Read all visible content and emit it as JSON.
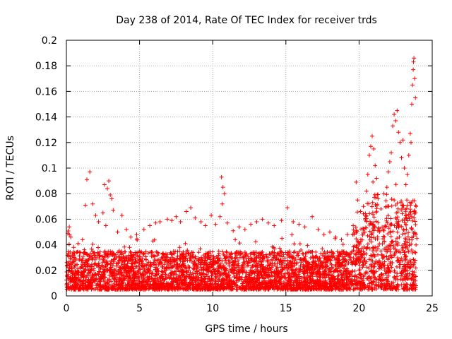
{
  "chart_data": {
    "type": "scatter",
    "title": "Day 238 of 2014, Rate Of TEC Index for receiver trds",
    "xlabel": "GPS time / hours",
    "ylabel": "ROTI / TECUs",
    "xlim": [
      0,
      25
    ],
    "ylim": [
      0,
      0.2
    ],
    "xticks": [
      0,
      5,
      10,
      15,
      20,
      25
    ],
    "xtick_labels": [
      "0",
      "5",
      "10",
      "15",
      "20",
      "25"
    ],
    "yticks": [
      0,
      0.02,
      0.04,
      0.06,
      0.08,
      0.1,
      0.12,
      0.14,
      0.16,
      0.18,
      0.2
    ],
    "ytick_labels": [
      "0",
      "0.02",
      "0.04",
      "0.06",
      "0.08",
      "0.1",
      "0.12",
      "0.14",
      "0.16",
      "0.18",
      "0.2"
    ],
    "grid": true,
    "marker": "+",
    "color": "#ff0000",
    "series": [
      {
        "name": "ROTI",
        "description": "Dense band of ROTI values mostly 0.005-0.045 TECU/min across 0-24 h, with enhanced spikes after 20 h reaching ~0.185",
        "points": [
          [
            0.1,
            0.049
          ],
          [
            0.2,
            0.054
          ],
          [
            0.3,
            0.046
          ],
          [
            0.5,
            0.038
          ],
          [
            0.8,
            0.041
          ],
          [
            1.1,
            0.044
          ],
          [
            1.4,
            0.091
          ],
          [
            1.6,
            0.097
          ],
          [
            1.3,
            0.071
          ],
          [
            1.8,
            0.072
          ],
          [
            2.0,
            0.063
          ],
          [
            2.2,
            0.058
          ],
          [
            2.5,
            0.065
          ],
          [
            2.6,
            0.087
          ],
          [
            2.8,
            0.084
          ],
          [
            2.9,
            0.09
          ],
          [
            3.0,
            0.079
          ],
          [
            3.1,
            0.076
          ],
          [
            3.2,
            0.067
          ],
          [
            2.7,
            0.055
          ],
          [
            3.5,
            0.05
          ],
          [
            3.8,
            0.063
          ],
          [
            4.1,
            0.052
          ],
          [
            4.4,
            0.046
          ],
          [
            4.8,
            0.048
          ],
          [
            5.3,
            0.052
          ],
          [
            5.7,
            0.055
          ],
          [
            6.1,
            0.057
          ],
          [
            6.4,
            0.058
          ],
          [
            6.9,
            0.06
          ],
          [
            7.2,
            0.059
          ],
          [
            7.5,
            0.062
          ],
          [
            7.8,
            0.058
          ],
          [
            8.2,
            0.066
          ],
          [
            8.5,
            0.069
          ],
          [
            8.8,
            0.061
          ],
          [
            9.2,
            0.058
          ],
          [
            9.5,
            0.055
          ],
          [
            9.9,
            0.063
          ],
          [
            10.2,
            0.056
          ],
          [
            10.5,
            0.062
          ],
          [
            10.6,
            0.093
          ],
          [
            10.7,
            0.085
          ],
          [
            10.8,
            0.08
          ],
          [
            10.65,
            0.072
          ],
          [
            11.0,
            0.057
          ],
          [
            11.4,
            0.051
          ],
          [
            11.8,
            0.054
          ],
          [
            12.2,
            0.052
          ],
          [
            12.6,
            0.056
          ],
          [
            13.0,
            0.058
          ],
          [
            13.4,
            0.06
          ],
          [
            13.8,
            0.057
          ],
          [
            14.2,
            0.055
          ],
          [
            14.7,
            0.059
          ],
          [
            15.1,
            0.069
          ],
          [
            15.5,
            0.058
          ],
          [
            15.9,
            0.056
          ],
          [
            16.3,
            0.054
          ],
          [
            16.8,
            0.062
          ],
          [
            17.2,
            0.052
          ],
          [
            17.6,
            0.048
          ],
          [
            18.0,
            0.05
          ],
          [
            18.4,
            0.046
          ],
          [
            18.8,
            0.044
          ],
          [
            19.2,
            0.048
          ],
          [
            19.6,
            0.055
          ],
          [
            19.8,
            0.089
          ],
          [
            19.9,
            0.075
          ],
          [
            20.1,
            0.066
          ],
          [
            20.3,
            0.07
          ],
          [
            20.5,
            0.082
          ],
          [
            20.6,
            0.095
          ],
          [
            20.7,
            0.11
          ],
          [
            20.8,
            0.117
          ],
          [
            20.9,
            0.125
          ],
          [
            21.0,
            0.115
          ],
          [
            21.1,
            0.102
          ],
          [
            21.2,
            0.092
          ],
          [
            21.3,
            0.076
          ],
          [
            21.5,
            0.068
          ],
          [
            21.7,
            0.08
          ],
          [
            21.9,
            0.085
          ],
          [
            22.0,
            0.097
          ],
          [
            22.1,
            0.105
          ],
          [
            22.2,
            0.112
          ],
          [
            22.3,
            0.133
          ],
          [
            22.4,
            0.142
          ],
          [
            22.5,
            0.137
          ],
          [
            22.6,
            0.145
          ],
          [
            22.7,
            0.128
          ],
          [
            22.8,
            0.12
          ],
          [
            22.9,
            0.108
          ],
          [
            23.0,
            0.122
          ],
          [
            23.1,
            0.1
          ],
          [
            23.2,
            0.087
          ],
          [
            23.3,
            0.095
          ],
          [
            23.4,
            0.11
          ],
          [
            23.5,
            0.127
          ],
          [
            23.55,
            0.12
          ],
          [
            23.6,
            0.15
          ],
          [
            23.65,
            0.165
          ],
          [
            23.7,
            0.177
          ],
          [
            23.72,
            0.183
          ],
          [
            23.75,
            0.186
          ],
          [
            23.8,
            0.17
          ],
          [
            23.85,
            0.155
          ],
          [
            23.9,
            0.07
          ],
          [
            23.95,
            0.045
          ]
        ]
      }
    ]
  }
}
